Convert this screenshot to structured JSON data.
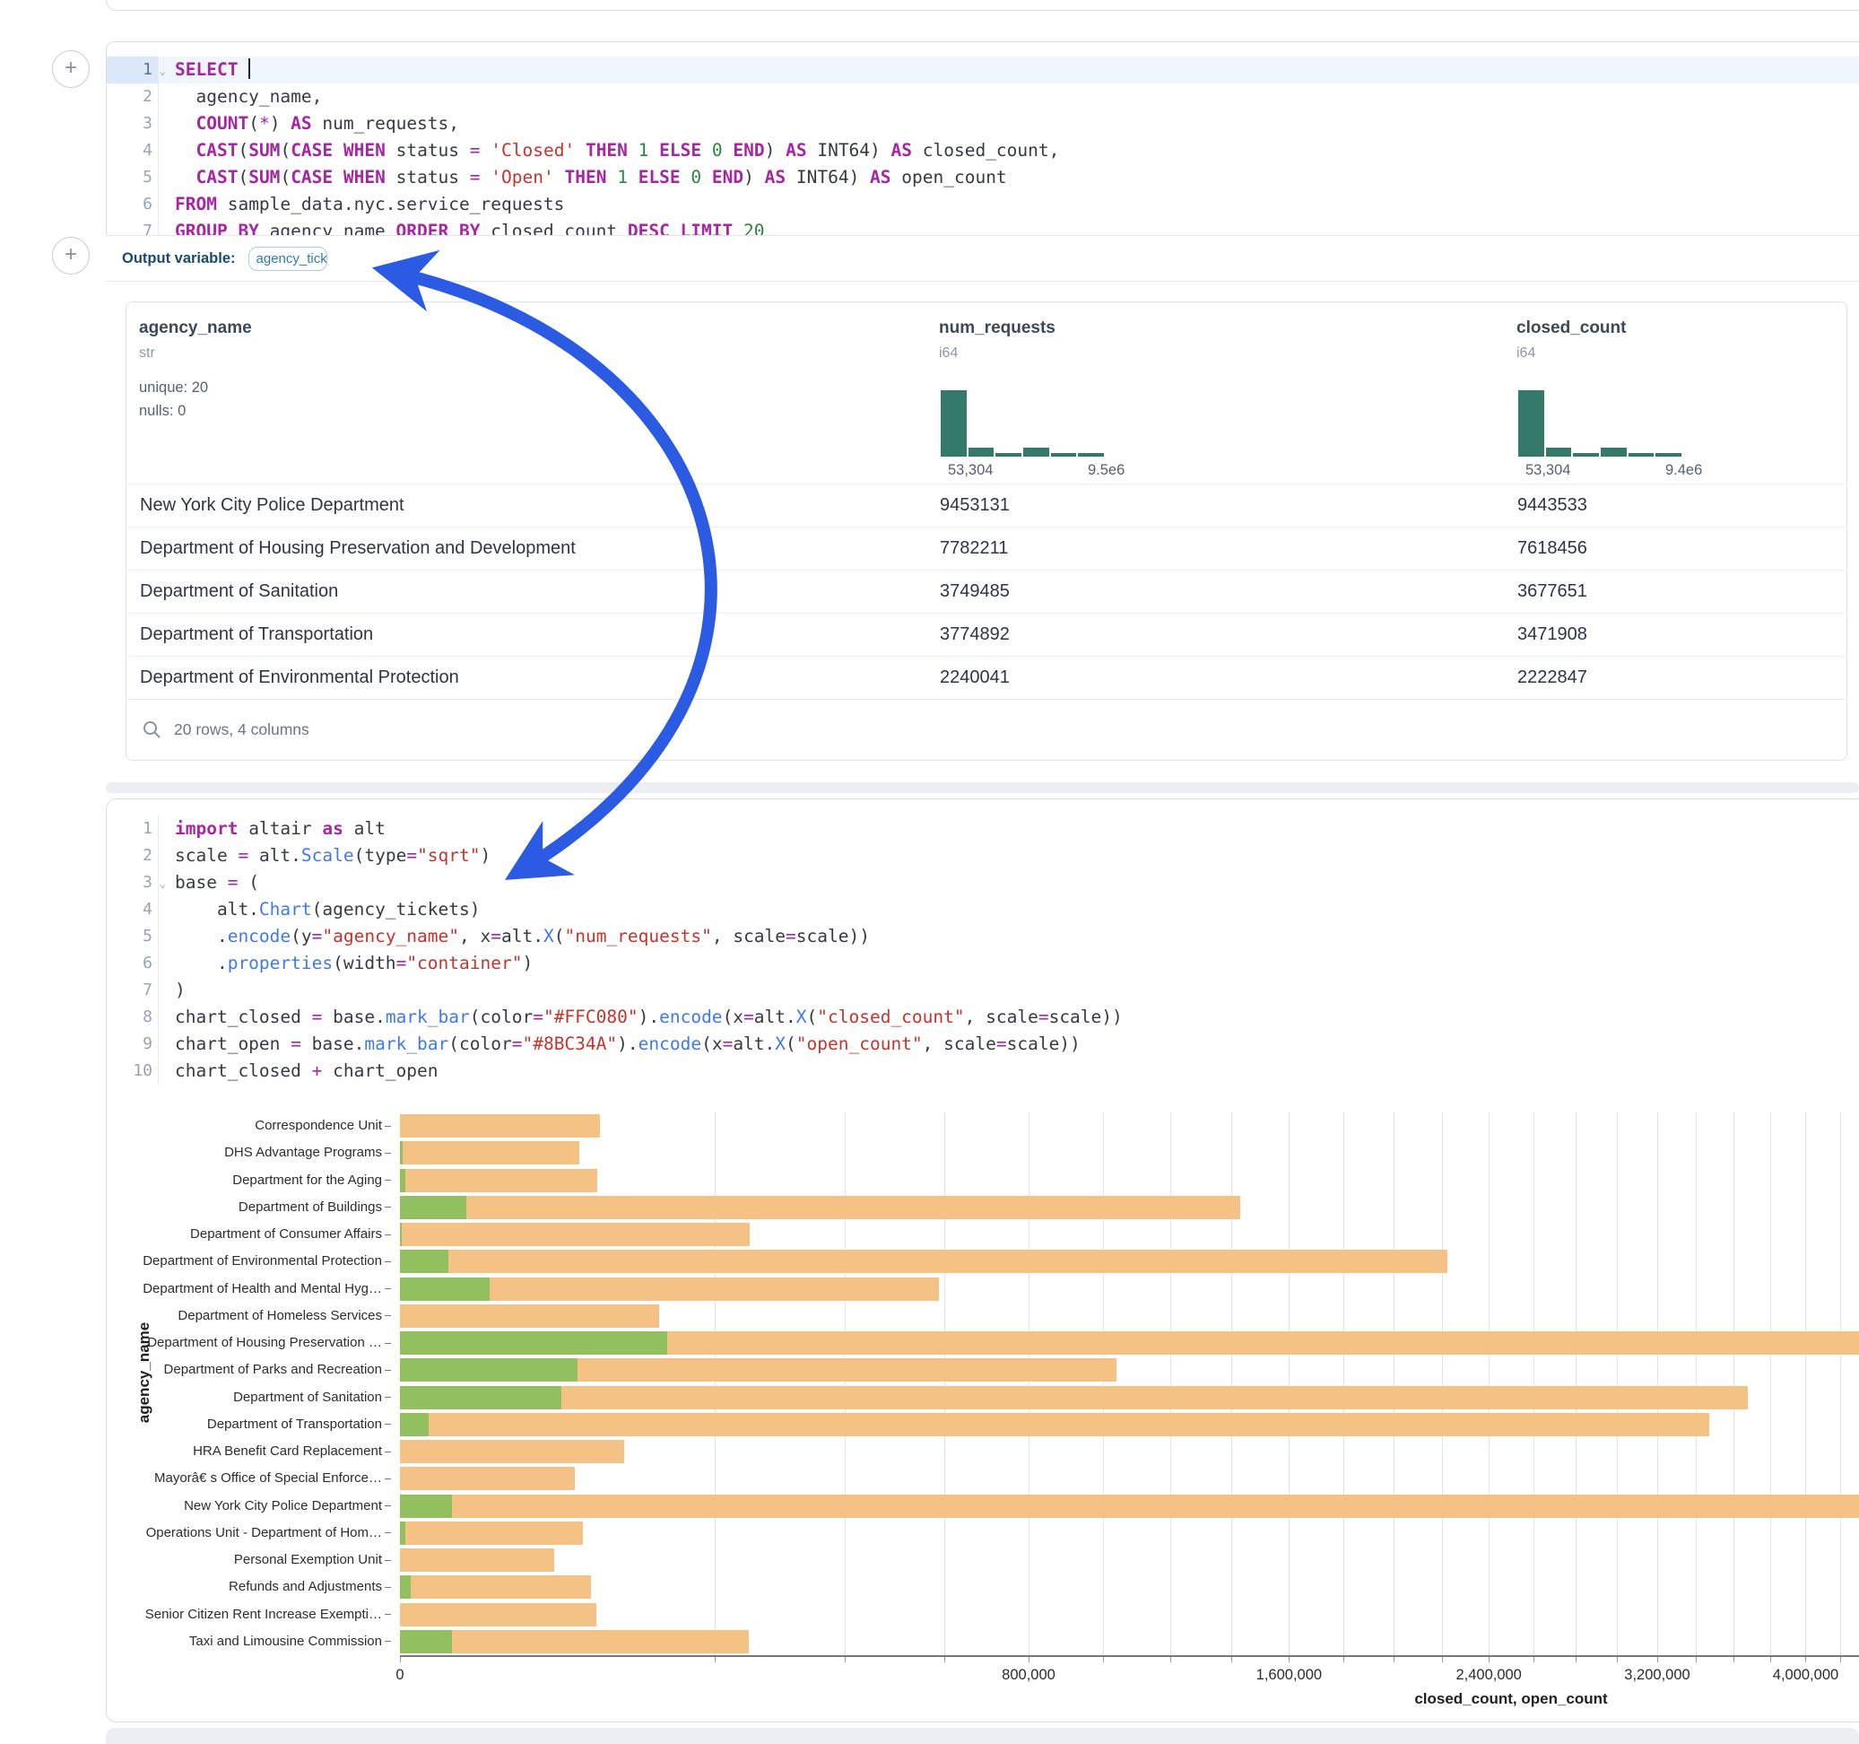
{
  "colors": {
    "arrow": "#2b5be3",
    "bar_closed": "#f5c286",
    "bar_open": "#93c05f",
    "histogram": "#35796b"
  },
  "sql_cell": {
    "lines": [
      {
        "n": 1,
        "chevron": true,
        "active": true,
        "cursor": true,
        "tokens": [
          [
            "k",
            "SELECT"
          ],
          [
            "p",
            " "
          ]
        ]
      },
      {
        "n": 2,
        "tokens": [
          [
            "p",
            "  agency_name,"
          ]
        ]
      },
      {
        "n": 3,
        "tokens": [
          [
            "p",
            "  "
          ],
          [
            "k",
            "COUNT"
          ],
          [
            "p",
            "("
          ],
          [
            "o",
            "*"
          ],
          [
            "p",
            ") "
          ],
          [
            "k",
            "AS"
          ],
          [
            "p",
            " num_requests,"
          ]
        ]
      },
      {
        "n": 4,
        "tokens": [
          [
            "p",
            "  "
          ],
          [
            "k",
            "CAST"
          ],
          [
            "p",
            "("
          ],
          [
            "k",
            "SUM"
          ],
          [
            "p",
            "("
          ],
          [
            "k",
            "CASE WHEN"
          ],
          [
            "p",
            " status "
          ],
          [
            "o",
            "="
          ],
          [
            "p",
            " "
          ],
          [
            "s",
            "'Closed'"
          ],
          [
            "p",
            " "
          ],
          [
            "k",
            "THEN"
          ],
          [
            "p",
            " "
          ],
          [
            "n",
            "1"
          ],
          [
            "p",
            " "
          ],
          [
            "k",
            "ELSE"
          ],
          [
            "p",
            " "
          ],
          [
            "n",
            "0"
          ],
          [
            "p",
            " "
          ],
          [
            "k",
            "END"
          ],
          [
            "p",
            ") "
          ],
          [
            "k",
            "AS"
          ],
          [
            "p",
            " INT64) "
          ],
          [
            "k",
            "AS"
          ],
          [
            "p",
            " closed_count,"
          ]
        ]
      },
      {
        "n": 5,
        "tokens": [
          [
            "p",
            "  "
          ],
          [
            "k",
            "CAST"
          ],
          [
            "p",
            "("
          ],
          [
            "k",
            "SUM"
          ],
          [
            "p",
            "("
          ],
          [
            "k",
            "CASE WHEN"
          ],
          [
            "p",
            " status "
          ],
          [
            "o",
            "="
          ],
          [
            "p",
            " "
          ],
          [
            "s",
            "'Open'"
          ],
          [
            "p",
            " "
          ],
          [
            "k",
            "THEN"
          ],
          [
            "p",
            " "
          ],
          [
            "n",
            "1"
          ],
          [
            "p",
            " "
          ],
          [
            "k",
            "ELSE"
          ],
          [
            "p",
            " "
          ],
          [
            "n",
            "0"
          ],
          [
            "p",
            " "
          ],
          [
            "k",
            "END"
          ],
          [
            "p",
            ") "
          ],
          [
            "k",
            "AS"
          ],
          [
            "p",
            " INT64) "
          ],
          [
            "k",
            "AS"
          ],
          [
            "p",
            " open_count"
          ]
        ]
      },
      {
        "n": 6,
        "tokens": [
          [
            "k",
            "FROM"
          ],
          [
            "p",
            " sample_data.nyc.service_requests"
          ]
        ]
      },
      {
        "n": 7,
        "tokens": [
          [
            "k",
            "GROUP BY"
          ],
          [
            "p",
            " agency_name "
          ],
          [
            "k",
            "ORDER BY"
          ],
          [
            "p",
            " closed_count "
          ],
          [
            "k",
            "DESC"
          ],
          [
            "p",
            " "
          ],
          [
            "k",
            "LIMIT"
          ],
          [
            "p",
            " "
          ],
          [
            "n",
            "20"
          ]
        ]
      }
    ]
  },
  "output_bar": {
    "label": "Output variable:",
    "variable": "agency_tickets"
  },
  "table": {
    "columns": [
      {
        "name": "agency_name",
        "type": "str",
        "stats": [
          "unique: 20",
          "nulls: 0"
        ]
      },
      {
        "name": "num_requests",
        "type": "i64",
        "hist": [
          1,
          0.14,
          0.06,
          0.14,
          0.06,
          0.06
        ],
        "hist_min": "53,304",
        "hist_max": "9.5e6"
      },
      {
        "name": "closed_count",
        "type": "i64",
        "hist": [
          1,
          0.14,
          0.06,
          0.14,
          0.06,
          0.06
        ],
        "hist_min": "53,304",
        "hist_max": "9.4e6"
      }
    ],
    "rows": [
      {
        "agency_name": "New York City Police Department",
        "num_requests": "9453131",
        "closed_count": "9443533"
      },
      {
        "agency_name": "Department of Housing Preservation and Development",
        "num_requests": "7782211",
        "closed_count": "7618456"
      },
      {
        "agency_name": "Department of Sanitation",
        "num_requests": "3749485",
        "closed_count": "3677651"
      },
      {
        "agency_name": "Department of Transportation",
        "num_requests": "3774892",
        "closed_count": "3471908"
      },
      {
        "agency_name": "Department of Environmental Protection",
        "num_requests": "2240041",
        "closed_count": "2222847"
      }
    ],
    "footer": "20 rows, 4 columns"
  },
  "python_cell": {
    "lines": [
      {
        "n": 1,
        "tokens": [
          [
            "k",
            "import"
          ],
          [
            "p",
            " altair "
          ],
          [
            "k",
            "as"
          ],
          [
            "p",
            " alt"
          ]
        ]
      },
      {
        "n": 2,
        "tokens": [
          [
            "p",
            "scale "
          ],
          [
            "o",
            "="
          ],
          [
            "p",
            " alt."
          ],
          [
            "f",
            "Scale"
          ],
          [
            "p",
            "(type"
          ],
          [
            "o",
            "="
          ],
          [
            "s",
            "\"sqrt\""
          ],
          [
            "p",
            ")"
          ]
        ]
      },
      {
        "n": 3,
        "chevron": true,
        "tokens": [
          [
            "p",
            "base "
          ],
          [
            "o",
            "="
          ],
          [
            "p",
            " ("
          ]
        ]
      },
      {
        "n": 4,
        "tokens": [
          [
            "p",
            "    alt."
          ],
          [
            "f",
            "Chart"
          ],
          [
            "p",
            "(agency_tickets)"
          ]
        ]
      },
      {
        "n": 5,
        "tokens": [
          [
            "p",
            "    ."
          ],
          [
            "f",
            "encode"
          ],
          [
            "p",
            "(y"
          ],
          [
            "o",
            "="
          ],
          [
            "s",
            "\"agency_name\""
          ],
          [
            "p",
            ", x"
          ],
          [
            "o",
            "="
          ],
          [
            "p",
            "alt."
          ],
          [
            "f",
            "X"
          ],
          [
            "p",
            "("
          ],
          [
            "s",
            "\"num_requests\""
          ],
          [
            "p",
            ", scale"
          ],
          [
            "o",
            "="
          ],
          [
            "p",
            "scale))"
          ]
        ]
      },
      {
        "n": 6,
        "tokens": [
          [
            "p",
            "    ."
          ],
          [
            "f",
            "properties"
          ],
          [
            "p",
            "(width"
          ],
          [
            "o",
            "="
          ],
          [
            "s",
            "\"container\""
          ],
          [
            "p",
            ")"
          ]
        ]
      },
      {
        "n": 7,
        "tokens": [
          [
            "p",
            ")"
          ]
        ]
      },
      {
        "n": 8,
        "tokens": [
          [
            "p",
            "chart_closed "
          ],
          [
            "o",
            "="
          ],
          [
            "p",
            " base."
          ],
          [
            "f",
            "mark_bar"
          ],
          [
            "p",
            "(color"
          ],
          [
            "o",
            "="
          ],
          [
            "s",
            "\"#FFC080\""
          ],
          [
            "p",
            ")."
          ],
          [
            "f",
            "encode"
          ],
          [
            "p",
            "(x"
          ],
          [
            "o",
            "="
          ],
          [
            "p",
            "alt."
          ],
          [
            "f",
            "X"
          ],
          [
            "p",
            "("
          ],
          [
            "s",
            "\"closed_count\""
          ],
          [
            "p",
            ", scale"
          ],
          [
            "o",
            "="
          ],
          [
            "p",
            "scale))"
          ]
        ]
      },
      {
        "n": 9,
        "tokens": [
          [
            "p",
            "chart_open "
          ],
          [
            "o",
            "="
          ],
          [
            "p",
            " base."
          ],
          [
            "f",
            "mark_bar"
          ],
          [
            "p",
            "(color"
          ],
          [
            "o",
            "="
          ],
          [
            "s",
            "\"#8BC34A\""
          ],
          [
            "p",
            ")."
          ],
          [
            "f",
            "encode"
          ],
          [
            "p",
            "(x"
          ],
          [
            "o",
            "="
          ],
          [
            "p",
            "alt."
          ],
          [
            "f",
            "X"
          ],
          [
            "p",
            "("
          ],
          [
            "s",
            "\"open_count\""
          ],
          [
            "p",
            ", scale"
          ],
          [
            "o",
            "="
          ],
          [
            "p",
            "scale))"
          ]
        ]
      },
      {
        "n": 10,
        "tokens": [
          [
            "p",
            "chart_closed "
          ],
          [
            "o",
            "+"
          ],
          [
            "p",
            " chart_open"
          ]
        ]
      }
    ]
  },
  "chart_data": {
    "type": "bar",
    "orientation": "horizontal",
    "scale": "sqrt",
    "xlabel": "closed_count, open_count",
    "ylabel": "agency_name",
    "grid_step": 200000,
    "x_ticks": [
      {
        "v": 0,
        "label": "0"
      },
      {
        "v": 800000,
        "label": "800,000"
      },
      {
        "v": 1600000,
        "label": "1,600,000"
      },
      {
        "v": 2400000,
        "label": "2,400,000"
      },
      {
        "v": 3200000,
        "label": "3,200,000"
      },
      {
        "v": 4000000,
        "label": "4,000,000"
      }
    ],
    "categories": [
      "Correspondence Unit",
      "DHS Advantage Programs",
      "Department for the Aging",
      "Department of Buildings",
      "Department of Consumer Affairs",
      "Department of Environmental Protection",
      "Department of Health and Mental Hyg…",
      "Department of Homeless Services",
      "Department of Housing Preservation …",
      "Department of Parks and Recreation",
      "Department of Sanitation",
      "Department of Transportation",
      "HRA Benefit Card Replacement",
      "Mayorâ€ s Office of Special Enforce…",
      "New York City Police Department",
      "Operations Unit - Department of Hom…",
      "Personal Exemption Unit",
      "Refunds and Adjustments",
      "Senior Citizen Rent Increase Exempti…",
      "Taxi and Limousine Commission"
    ],
    "series": [
      {
        "name": "closed_count",
        "color": "#f5c286",
        "values": [
          81000,
          65000,
          79000,
          1430000,
          247000,
          2222847,
          588000,
          136000,
          7618456,
          1040000,
          3677651,
          3471908,
          102000,
          62000,
          9443533,
          68000,
          48000,
          74000,
          78000,
          246000
        ]
      },
      {
        "name": "open_count",
        "color": "#93c05f",
        "values": [
          0,
          15,
          50,
          8900,
          10,
          4700,
          16200,
          0,
          145000,
          64000,
          52600,
          1700,
          0,
          0,
          5500,
          60,
          0,
          240,
          0,
          5500
        ]
      }
    ]
  }
}
